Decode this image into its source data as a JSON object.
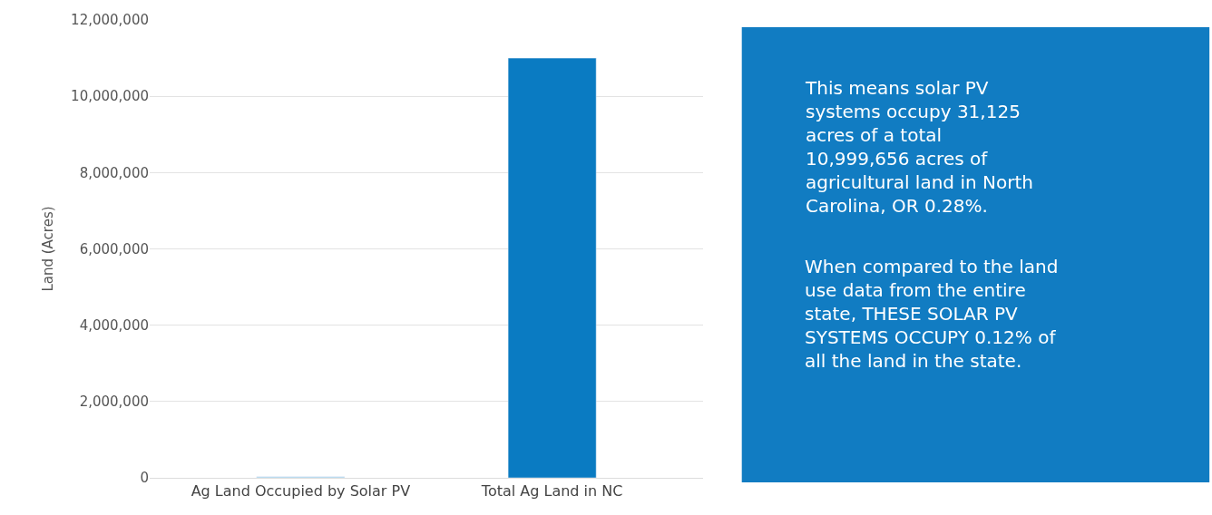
{
  "chart_data": {
    "type": "bar",
    "ylabel": "Land (Acres)",
    "categories": [
      "Ag Land Occupied by Solar PV",
      "Total Ag Land in NC"
    ],
    "values": [
      31125,
      10999656
    ],
    "colors": [
      "#a8d4ee",
      "#0a7bc2"
    ],
    "ylim": [
      0,
      12000000
    ],
    "yticks": [
      {
        "value": 0,
        "label": "0"
      },
      {
        "value": 2000000,
        "label": "2,000,000"
      },
      {
        "value": 4000000,
        "label": "4,000,000"
      },
      {
        "value": 6000000,
        "label": "6,000,000"
      },
      {
        "value": 8000000,
        "label": "8,000,000"
      },
      {
        "value": 10000000,
        "label": "10,000,000"
      },
      {
        "value": 12000000,
        "label": "12,000,000"
      }
    ],
    "grid": "y",
    "annotations": [
      "This means solar PV systems occupy 31,125 acres of a total 10,999,656 acres of agricultural land in North Carolina, OR 0.28%.",
      "When compared to the land use data from the entire state, THESE SOLAR PV SYSTEMS OCCUPY 0.12% of all the land in the state."
    ]
  }
}
